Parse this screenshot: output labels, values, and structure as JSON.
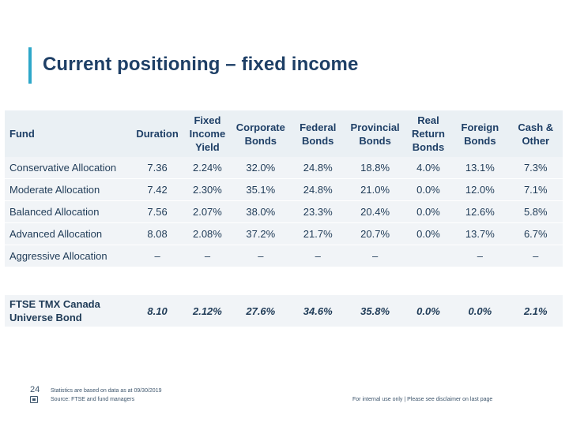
{
  "title": "Current positioning – fixed income",
  "table": {
    "headers": [
      "Fund",
      "Duration",
      "Fixed Income Yield",
      "Corporate Bonds",
      "Federal Bonds",
      "Provincial Bonds",
      "Real Return Bonds",
      "Foreign Bonds",
      "Cash & Other"
    ],
    "rows": [
      [
        "Conservative Allocation",
        "7.36",
        "2.24%",
        "32.0%",
        "24.8%",
        "18.8%",
        "4.0%",
        "13.1%",
        "7.3%"
      ],
      [
        "Moderate Allocation",
        "7.42",
        "2.30%",
        "35.1%",
        "24.8%",
        "21.0%",
        "0.0%",
        "12.0%",
        "7.1%"
      ],
      [
        "Balanced Allocation",
        "7.56",
        "2.07%",
        "38.0%",
        "23.3%",
        "20.4%",
        "0.0%",
        "12.6%",
        "5.8%"
      ],
      [
        "Advanced Allocation",
        "8.08",
        "2.08%",
        "37.2%",
        "21.7%",
        "20.7%",
        "0.0%",
        "13.7%",
        "6.7%"
      ],
      [
        "Aggressive Allocation",
        "–",
        "–",
        "–",
        "–",
        "–",
        "",
        "–",
        "–"
      ]
    ],
    "benchmark": [
      "FTSE TMX Canada Universe Bond",
      "8.10",
      "2.12%",
      "27.6%",
      "34.6%",
      "35.8%",
      "0.0%",
      "0.0%",
      "2.1%"
    ]
  },
  "footer": {
    "page_number": "24",
    "note_1": "Statistics are based on data as at 09/30/2019",
    "note_2": "Source: FTSE and fund managers",
    "disclaimer": "For internal use only | Please see disclaimer on last page"
  },
  "colors": {
    "accent": "#2ea7c9",
    "title": "#1e3f66",
    "row_fill": "#f1f4f7"
  }
}
